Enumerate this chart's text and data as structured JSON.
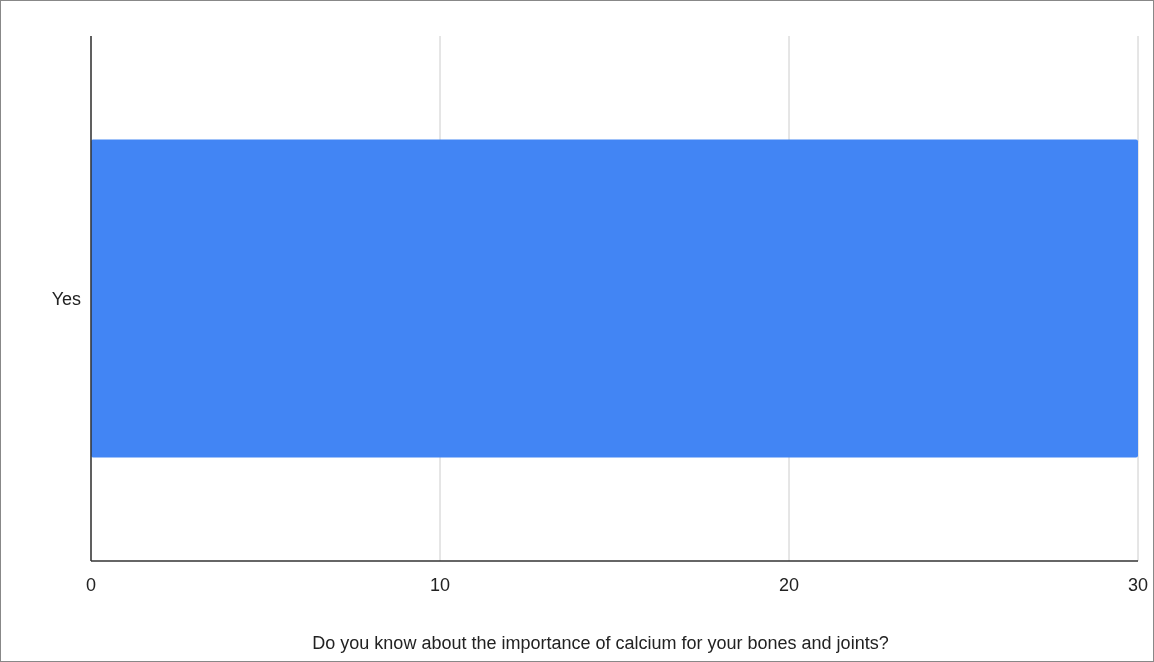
{
  "chart_data": {
    "type": "bar",
    "orientation": "horizontal",
    "categories": [
      "Yes"
    ],
    "values": [
      30
    ],
    "color": "#4285f4",
    "xlim": [
      0,
      30
    ],
    "xticks": [
      0,
      10,
      20,
      30
    ],
    "grid": "x",
    "xlabel": "Do you know about the importance of calcium for your bones and joints?"
  }
}
